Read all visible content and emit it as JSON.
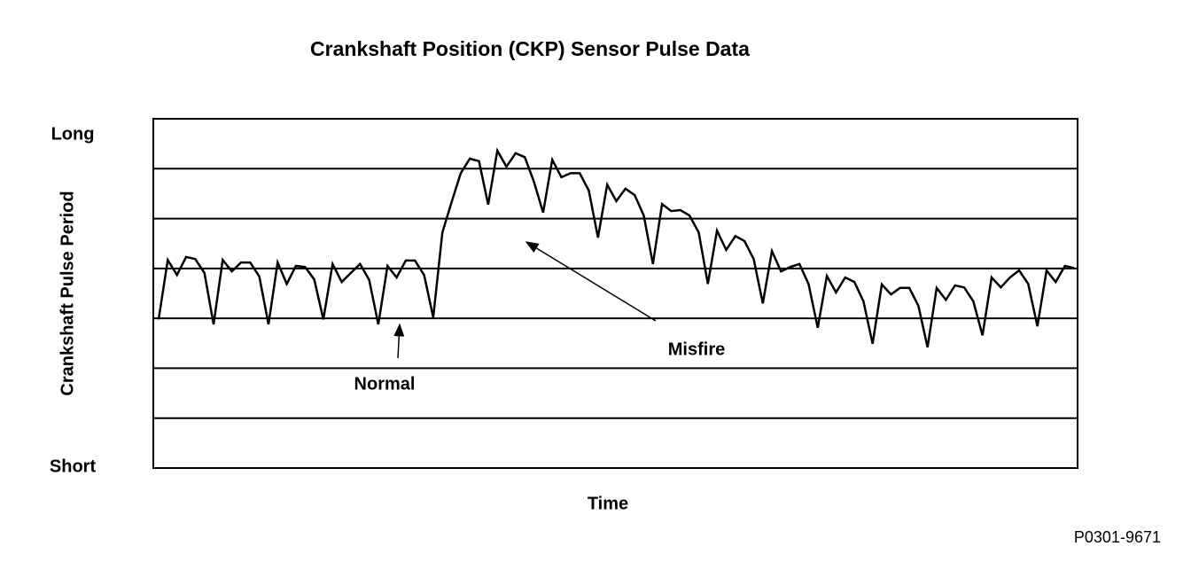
{
  "chart_data": {
    "type": "line",
    "title": "Crankshaft Position (CKP) Sensor Pulse Data",
    "xlabel": "Time",
    "ylabel": "Crankshaft Pulse Period",
    "ylim": [
      0,
      7
    ],
    "yticks": [
      {
        "value": 0,
        "label": "Short"
      },
      {
        "value": 7,
        "label": "Long"
      }
    ],
    "ygrid": [
      1,
      2,
      3,
      4,
      5,
      6
    ],
    "color": "#000000",
    "values": [
      2.98,
      4.17,
      3.87,
      4.23,
      4.19,
      3.91,
      2.88,
      4.17,
      3.94,
      4.12,
      4.12,
      3.84,
      2.88,
      4.12,
      3.69,
      4.05,
      4.03,
      3.78,
      2.98,
      4.09,
      3.73,
      3.91,
      4.09,
      3.77,
      2.88,
      4.05,
      3.82,
      4.16,
      4.16,
      3.87,
      3.02,
      4.72,
      5.33,
      5.91,
      6.2,
      6.15,
      5.28,
      6.36,
      6.04,
      6.31,
      6.23,
      5.74,
      5.12,
      6.18,
      5.83,
      5.91,
      5.91,
      5.56,
      4.62,
      5.68,
      5.35,
      5.6,
      5.47,
      5.06,
      4.09,
      5.29,
      5.15,
      5.17,
      5.06,
      4.72,
      3.69,
      4.76,
      4.37,
      4.65,
      4.55,
      4.19,
      3.3,
      4.35,
      3.94,
      4.03,
      4.09,
      3.69,
      2.81,
      3.85,
      3.52,
      3.82,
      3.73,
      3.34,
      2.49,
      3.68,
      3.48,
      3.61,
      3.61,
      3.25,
      2.42,
      3.61,
      3.37,
      3.66,
      3.62,
      3.34,
      2.66,
      3.82,
      3.62,
      3.82,
      3.96,
      3.69,
      2.84,
      3.96,
      3.73,
      4.05,
      4.01
    ],
    "annotations": [
      {
        "text": "Normal"
      },
      {
        "text": "Misfire"
      }
    ],
    "footer": "P0301-9671"
  }
}
